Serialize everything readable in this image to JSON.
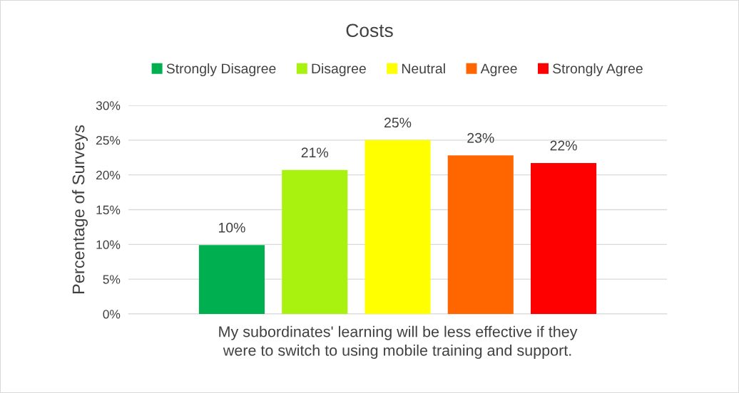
{
  "chart_data": {
    "type": "bar",
    "title": "Costs",
    "ylabel": "Percentage of Surveys",
    "categories": [
      "My subordinates' learning will be less effective if they\nwere to switch to using mobile training and support."
    ],
    "series": [
      {
        "name": "Strongly Disagree",
        "color": "#00b050",
        "values": [
          9.9
        ],
        "value_labels": [
          "10%"
        ]
      },
      {
        "name": "Disagree",
        "color": "#a9f20f",
        "values": [
          20.7
        ],
        "value_labels": [
          "21%"
        ]
      },
      {
        "name": "Neutral",
        "color": "#ffff00",
        "values": [
          25
        ],
        "value_labels": [
          "25%"
        ]
      },
      {
        "name": "Agree",
        "color": "#ff6600",
        "values": [
          22.8
        ],
        "value_labels": [
          "23%"
        ]
      },
      {
        "name": "Strongly Agree",
        "color": "#ff0000",
        "values": [
          21.7
        ],
        "value_labels": [
          "22%"
        ]
      }
    ],
    "ylim": [
      0,
      30
    ],
    "yticks": [
      {
        "value": 0,
        "label": "0%"
      },
      {
        "value": 5,
        "label": "5%"
      },
      {
        "value": 10,
        "label": "10%"
      },
      {
        "value": 15,
        "label": "15%"
      },
      {
        "value": 20,
        "label": "20%"
      },
      {
        "value": 25,
        "label": "25%"
      },
      {
        "value": 30,
        "label": "30%"
      }
    ],
    "grid": "y",
    "legend": "top"
  }
}
